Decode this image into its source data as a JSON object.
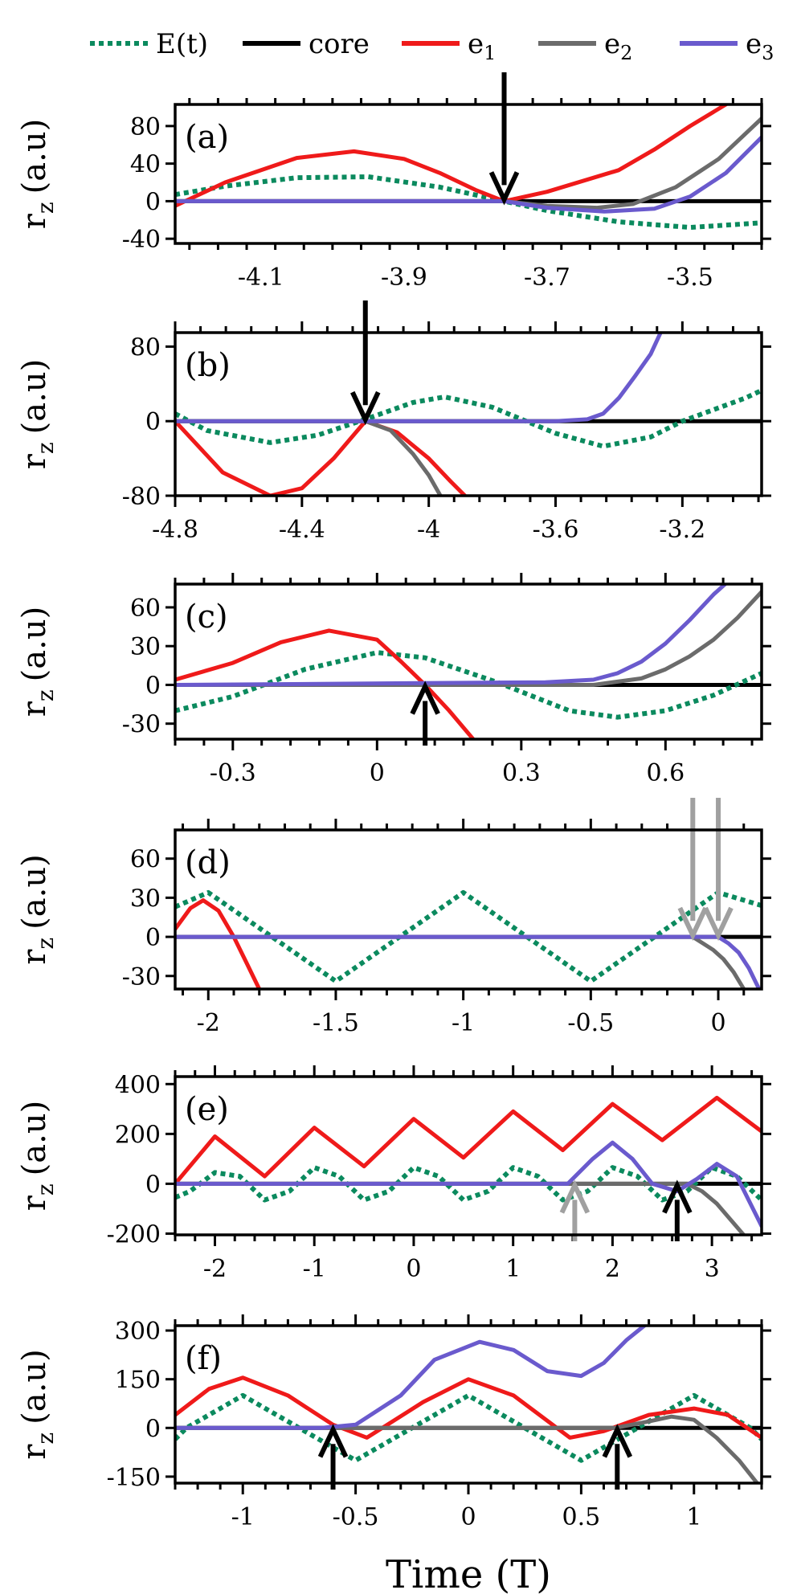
{
  "legend": {
    "entries": [
      {
        "key": "E",
        "label": "E(t)",
        "color": "#0b8a5e",
        "dash": true
      },
      {
        "key": "core",
        "label": "core",
        "color": "#000000",
        "dash": false
      },
      {
        "key": "e1",
        "label": "e",
        "sub": "1",
        "color": "#ef1a1a",
        "dash": false
      },
      {
        "key": "e2",
        "label": "e",
        "sub": "2",
        "color": "#6b6b6b",
        "dash": false
      },
      {
        "key": "e3",
        "label": "e",
        "sub": "3",
        "color": "#6a5acd",
        "dash": false
      }
    ]
  },
  "xlabel": "Time (T)",
  "chart_data": [
    {
      "type": "line",
      "panel": "(a)",
      "ylabel": "r",
      "ylabel_sub": "z",
      "ylabel_unit": "(a.u)",
      "xlim": [
        -4.22,
        -3.4
      ],
      "ylim": [
        -45,
        103
      ],
      "xticks": [
        -4.1,
        -3.9,
        -3.7,
        -3.5
      ],
      "xtick_labels": [
        "-4.1",
        "-3.9",
        "-3.7",
        "-3.5"
      ],
      "yticks": [
        -40,
        0,
        40,
        80
      ],
      "ytick_labels": [
        "-40",
        "0",
        "40",
        "80"
      ],
      "arrows": [
        {
          "x": -3.76,
          "y": 0,
          "dir": "down",
          "color": "black"
        }
      ],
      "series": [
        {
          "name": "E(t)",
          "x": [
            -4.22,
            -4.15,
            -4.05,
            -3.95,
            -3.85,
            -3.76,
            -3.7,
            -3.6,
            -3.5,
            -3.4
          ],
          "y": [
            7,
            16,
            25,
            26,
            15,
            0,
            -10,
            -22,
            -28,
            -23
          ]
        },
        {
          "name": "core",
          "x": [
            -4.22,
            -3.4
          ],
          "y": [
            0,
            0
          ]
        },
        {
          "name": "e1",
          "x": [
            -4.22,
            -4.15,
            -4.05,
            -3.97,
            -3.9,
            -3.85,
            -3.8,
            -3.76,
            -3.7,
            -3.6,
            -3.55,
            -3.5,
            -3.45
          ],
          "y": [
            -5,
            20,
            46,
            53,
            45,
            30,
            12,
            0,
            10,
            33,
            55,
            80,
            103
          ]
        },
        {
          "name": "e2",
          "x": [
            -4.22,
            -3.76,
            -3.7,
            -3.63,
            -3.58,
            -3.52,
            -3.46,
            -3.4
          ],
          "y": [
            0,
            0,
            -5,
            -7,
            -3,
            15,
            45,
            88
          ]
        },
        {
          "name": "e3",
          "x": [
            -4.22,
            -3.76,
            -3.7,
            -3.62,
            -3.55,
            -3.5,
            -3.45,
            -3.4
          ],
          "y": [
            0,
            0,
            -7,
            -11,
            -8,
            5,
            30,
            68
          ]
        }
      ]
    },
    {
      "type": "line",
      "panel": "(b)",
      "ylabel": "r",
      "ylabel_sub": "z",
      "ylabel_unit": "(a.u)",
      "xlim": [
        -4.8,
        -2.95
      ],
      "ylim": [
        -80,
        95
      ],
      "xticks": [
        -4.8,
        -4.4,
        -4.0,
        -3.6,
        -3.2
      ],
      "xtick_labels": [
        "-4.8",
        "-4.4",
        "-4",
        "-3.6",
        "-3.2"
      ],
      "yticks": [
        -80,
        0,
        80
      ],
      "ytick_labels": [
        "-80",
        "0",
        "80"
      ],
      "arrows": [
        {
          "x": -4.2,
          "y": 0,
          "dir": "down",
          "color": "black"
        }
      ],
      "series": [
        {
          "name": "E(t)",
          "x": [
            -4.8,
            -4.7,
            -4.5,
            -4.35,
            -4.2,
            -4.05,
            -3.95,
            -3.8,
            -3.6,
            -3.45,
            -3.3,
            -3.2,
            -3.0,
            -2.95
          ],
          "y": [
            8,
            -10,
            -23,
            -15,
            2,
            20,
            26,
            15,
            -13,
            -27,
            -17,
            0,
            25,
            33
          ]
        },
        {
          "name": "core",
          "x": [
            -4.8,
            -2.95
          ],
          "y": [
            0,
            0
          ]
        },
        {
          "name": "e1",
          "x": [
            -4.8,
            -4.65,
            -4.5,
            -4.4,
            -4.3,
            -4.2,
            -4.1,
            -4.0,
            -3.93,
            -3.88
          ],
          "y": [
            0,
            -55,
            -80,
            -72,
            -40,
            0,
            -12,
            -40,
            -65,
            -82
          ]
        },
        {
          "name": "e2",
          "x": [
            -4.8,
            -4.2,
            -4.12,
            -4.05,
            -4.0,
            -3.96
          ],
          "y": [
            0,
            0,
            -10,
            -35,
            -58,
            -82
          ]
        },
        {
          "name": "e3",
          "x": [
            -4.8,
            -3.6,
            -3.5,
            -3.45,
            -3.4,
            -3.35,
            -3.3,
            -3.27
          ],
          "y": [
            0,
            0,
            2,
            8,
            25,
            48,
            72,
            94
          ]
        }
      ]
    },
    {
      "type": "line",
      "panel": "(c)",
      "ylabel": "r",
      "ylabel_sub": "z",
      "ylabel_unit": "(a.u)",
      "xlim": [
        -0.42,
        0.8
      ],
      "ylim": [
        -42,
        78
      ],
      "xticks": [
        -0.3,
        0.0,
        0.3,
        0.6
      ],
      "xtick_labels": [
        "-0.3",
        "0",
        "0.3",
        "0.6"
      ],
      "yticks": [
        -30,
        0,
        30,
        60
      ],
      "ytick_labels": [
        "-30",
        "0",
        "30",
        "60"
      ],
      "arrows": [
        {
          "x": 0.1,
          "y": 0,
          "dir": "up",
          "color": "black"
        }
      ],
      "series": [
        {
          "name": "E(t)",
          "x": [
            -0.42,
            -0.3,
            -0.15,
            0.0,
            0.1,
            0.25,
            0.4,
            0.5,
            0.6,
            0.7,
            0.8
          ],
          "y": [
            -20,
            -9,
            12,
            25,
            21,
            2,
            -20,
            -25,
            -20,
            -8,
            9
          ]
        },
        {
          "name": "core",
          "x": [
            -0.42,
            0.8
          ],
          "y": [
            0,
            0
          ]
        },
        {
          "name": "e1",
          "x": [
            -0.42,
            -0.3,
            -0.2,
            -0.1,
            0.0,
            0.05,
            0.1,
            0.15,
            0.2
          ],
          "y": [
            4,
            17,
            33,
            42,
            35,
            18,
            0,
            -20,
            -42
          ]
        },
        {
          "name": "e2",
          "x": [
            -0.42,
            0.45,
            0.55,
            0.6,
            0.65,
            0.7,
            0.75,
            0.8
          ],
          "y": [
            0,
            0,
            5,
            12,
            22,
            35,
            52,
            72
          ]
        },
        {
          "name": "e3",
          "x": [
            -0.42,
            0.35,
            0.45,
            0.5,
            0.55,
            0.6,
            0.65,
            0.7,
            0.73
          ],
          "y": [
            0,
            2,
            4,
            9,
            18,
            32,
            50,
            70,
            80
          ]
        }
      ]
    },
    {
      "type": "line",
      "panel": "(d)",
      "ylabel": "r",
      "ylabel_sub": "z",
      "ylabel_unit": "(a.u)",
      "xlim": [
        -2.13,
        0.17
      ],
      "ylim": [
        -40,
        82
      ],
      "xticks": [
        -2.0,
        -1.5,
        -1.0,
        -0.5,
        0.0
      ],
      "xtick_labels": [
        "-2",
        "-1.5",
        "-1",
        "-0.5",
        "0"
      ],
      "yticks": [
        -30,
        0,
        30,
        60
      ],
      "ytick_labels": [
        "-30",
        "0",
        "30",
        "60"
      ],
      "arrows": [
        {
          "x": -0.1,
          "y": 0,
          "dir": "down",
          "color": "gray"
        },
        {
          "x": 0.0,
          "y": 0,
          "dir": "down",
          "color": "gray"
        }
      ],
      "series": [
        {
          "name": "E(t)",
          "x": [
            -2.13,
            -2.0,
            -1.75,
            -1.5,
            -1.25,
            -1.0,
            -0.75,
            -0.5,
            -0.25,
            0.0,
            0.17
          ],
          "y": [
            23,
            34,
            0,
            -34,
            0,
            34,
            0,
            -34,
            0,
            34,
            24
          ]
        },
        {
          "name": "core",
          "x": [
            -2.13,
            0.17
          ],
          "y": [
            0,
            0
          ]
        },
        {
          "name": "e1",
          "x": [
            -2.13,
            -2.07,
            -2.02,
            -1.96,
            -1.9,
            -1.85,
            -1.8
          ],
          "y": [
            6,
            22,
            28,
            20,
            0,
            -20,
            -40
          ]
        },
        {
          "name": "e2",
          "x": [
            -2.13,
            -0.1,
            -0.06,
            -0.02,
            0.02,
            0.06,
            0.1
          ],
          "y": [
            0,
            0,
            -5,
            -10,
            -17,
            -27,
            -40
          ]
        },
        {
          "name": "e3",
          "x": [
            -2.13,
            0.0,
            0.04,
            0.08,
            0.12,
            0.16
          ],
          "y": [
            0,
            0,
            -5,
            -12,
            -24,
            -40
          ]
        }
      ]
    },
    {
      "type": "line",
      "panel": "(e)",
      "ylabel": "r",
      "ylabel_sub": "z",
      "ylabel_unit": "(a.u)",
      "xlim": [
        -2.4,
        3.5
      ],
      "ylim": [
        -205,
        430
      ],
      "xticks": [
        -2,
        -1,
        0,
        1,
        2,
        3
      ],
      "xtick_labels": [
        "-2",
        "-1",
        "0",
        "1",
        "2",
        "3"
      ],
      "yticks": [
        -200,
        0,
        200,
        400
      ],
      "ytick_labels": [
        "-200",
        "0",
        "200",
        "400"
      ],
      "arrows": [
        {
          "x": 1.62,
          "y": 0,
          "dir": "up",
          "color": "gray"
        },
        {
          "x": 2.65,
          "y": 0,
          "dir": "up",
          "color": "black"
        }
      ],
      "series": [
        {
          "name": "E(t)",
          "x": [
            -2.4,
            -2.25,
            -2.0,
            -1.75,
            -1.5,
            -1.25,
            -1.0,
            -0.75,
            -0.5,
            -0.25,
            0.0,
            0.25,
            0.5,
            0.75,
            1.0,
            1.25,
            1.5,
            1.75,
            2.0,
            2.25,
            2.5,
            2.75,
            3.0,
            3.25,
            3.5
          ],
          "y": [
            -55,
            -30,
            45,
            30,
            -65,
            -30,
            65,
            30,
            -65,
            -30,
            65,
            30,
            -65,
            -30,
            65,
            30,
            -65,
            -30,
            65,
            30,
            -65,
            -30,
            65,
            30,
            -65
          ]
        },
        {
          "name": "core",
          "x": [
            -2.4,
            3.5
          ],
          "y": [
            0,
            0
          ]
        },
        {
          "name": "e1",
          "x": [
            -2.4,
            -2.0,
            -1.5,
            -1.0,
            -0.5,
            0.0,
            0.5,
            1.0,
            1.5,
            2.0,
            2.5,
            3.05,
            3.5
          ],
          "y": [
            0,
            190,
            30,
            225,
            70,
            260,
            105,
            290,
            135,
            320,
            175,
            345,
            210
          ]
        },
        {
          "name": "e2",
          "x": [
            -2.4,
            2.75,
            2.9,
            3.05,
            3.2,
            3.33
          ],
          "y": [
            0,
            0,
            -30,
            -80,
            -150,
            -210
          ]
        },
        {
          "name": "e3",
          "x": [
            -2.4,
            1.55,
            1.8,
            2.0,
            2.2,
            2.4,
            2.65,
            2.85,
            3.05,
            3.25,
            3.5
          ],
          "y": [
            0,
            0,
            100,
            165,
            100,
            0,
            -30,
            20,
            80,
            30,
            -170
          ]
        }
      ]
    },
    {
      "type": "line",
      "panel": "(f)",
      "ylabel": "r",
      "ylabel_sub": "z",
      "ylabel_unit": "(a.u)",
      "xlim": [
        -1.3,
        1.3
      ],
      "ylim": [
        -170,
        315
      ],
      "xticks": [
        -1.0,
        -0.5,
        0.0,
        0.5,
        1.0
      ],
      "xtick_labels": [
        "-1",
        "-0.5",
        "0",
        "0.5",
        "1"
      ],
      "yticks": [
        -150,
        0,
        150,
        300
      ],
      "ytick_labels": [
        "-150",
        "0",
        "150",
        "300"
      ],
      "arrows": [
        {
          "x": -0.6,
          "y": 0,
          "dir": "up",
          "color": "black"
        },
        {
          "x": 0.66,
          "y": 0,
          "dir": "up",
          "color": "black"
        }
      ],
      "series": [
        {
          "name": "E(t)",
          "x": [
            -1.3,
            -1.25,
            -1.0,
            -0.75,
            -0.5,
            -0.25,
            0.0,
            0.25,
            0.5,
            0.75,
            1.0,
            1.25,
            1.3
          ],
          "y": [
            -35,
            0,
            100,
            0,
            -100,
            0,
            100,
            0,
            -100,
            0,
            100,
            0,
            -35
          ]
        },
        {
          "name": "core",
          "x": [
            -1.3,
            1.3
          ],
          "y": [
            0,
            0
          ]
        },
        {
          "name": "e1",
          "x": [
            -1.3,
            -1.15,
            -1.0,
            -0.8,
            -0.6,
            -0.45,
            -0.2,
            0.0,
            0.2,
            0.45,
            0.6,
            0.8,
            1.0,
            1.15,
            1.3
          ],
          "y": [
            40,
            120,
            155,
            100,
            10,
            -30,
            80,
            150,
            100,
            -30,
            -10,
            40,
            60,
            40,
            -30
          ]
        },
        {
          "name": "e2",
          "x": [
            -1.3,
            0.65,
            0.8,
            0.9,
            1.0,
            1.1,
            1.2,
            1.28
          ],
          "y": [
            0,
            0,
            20,
            35,
            25,
            -30,
            -100,
            -170
          ]
        },
        {
          "name": "e3",
          "x": [
            -1.3,
            -0.65,
            -0.5,
            -0.3,
            -0.15,
            0.05,
            0.2,
            0.35,
            0.5,
            0.6,
            0.7,
            0.78
          ],
          "y": [
            0,
            0,
            10,
            100,
            210,
            265,
            240,
            175,
            160,
            200,
            270,
            315
          ]
        }
      ]
    }
  ]
}
